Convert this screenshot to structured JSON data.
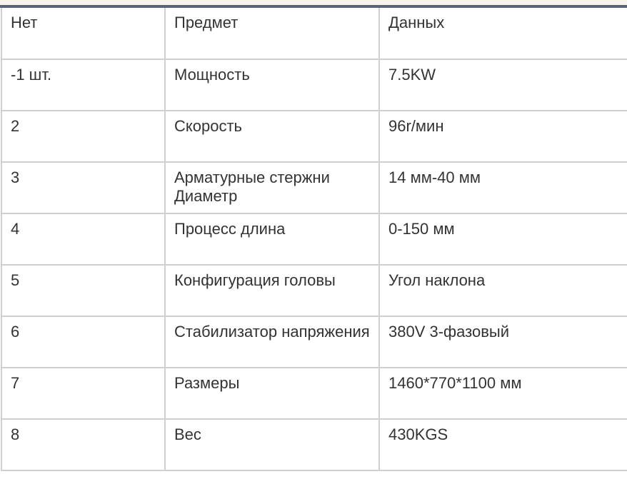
{
  "table": {
    "headers": [
      "Нет",
      "Предмет",
      "Данных"
    ],
    "rows": [
      [
        "-1 шт.",
        "Мощность",
        "7.5KW"
      ],
      [
        "2",
        "Скорость",
        "96r/мин"
      ],
      [
        "3",
        "Арматурные стержни Диаметр",
        "14 мм-40 мм"
      ],
      [
        "4",
        "Процесс длина",
        "0-150 мм"
      ],
      [
        "5",
        "Конфигурация головы",
        "Угол наклона"
      ],
      [
        "6",
        "Стабилизатор напряжения",
        "380V 3-фазовый"
      ],
      [
        "7",
        "Размеры",
        "1460*770*1100 мм"
      ],
      [
        "8",
        "Вес",
        "430KGS"
      ]
    ]
  },
  "colors": {
    "top_bar": "#586476",
    "border": "#cfcfcf",
    "text": "#333333"
  }
}
